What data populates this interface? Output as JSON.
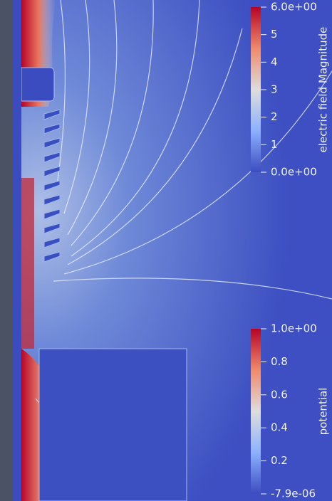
{
  "colorbars": [
    {
      "title": "electric field Magnitude",
      "ticks": [
        "6.0e+00",
        "5",
        "4",
        "3",
        "2",
        "1",
        "0.0e+00"
      ]
    },
    {
      "title": "potential",
      "ticks": [
        "1.0e+00",
        "0.8",
        "0.6",
        "0.4",
        "0.2",
        "-7.9e-06"
      ]
    }
  ]
}
